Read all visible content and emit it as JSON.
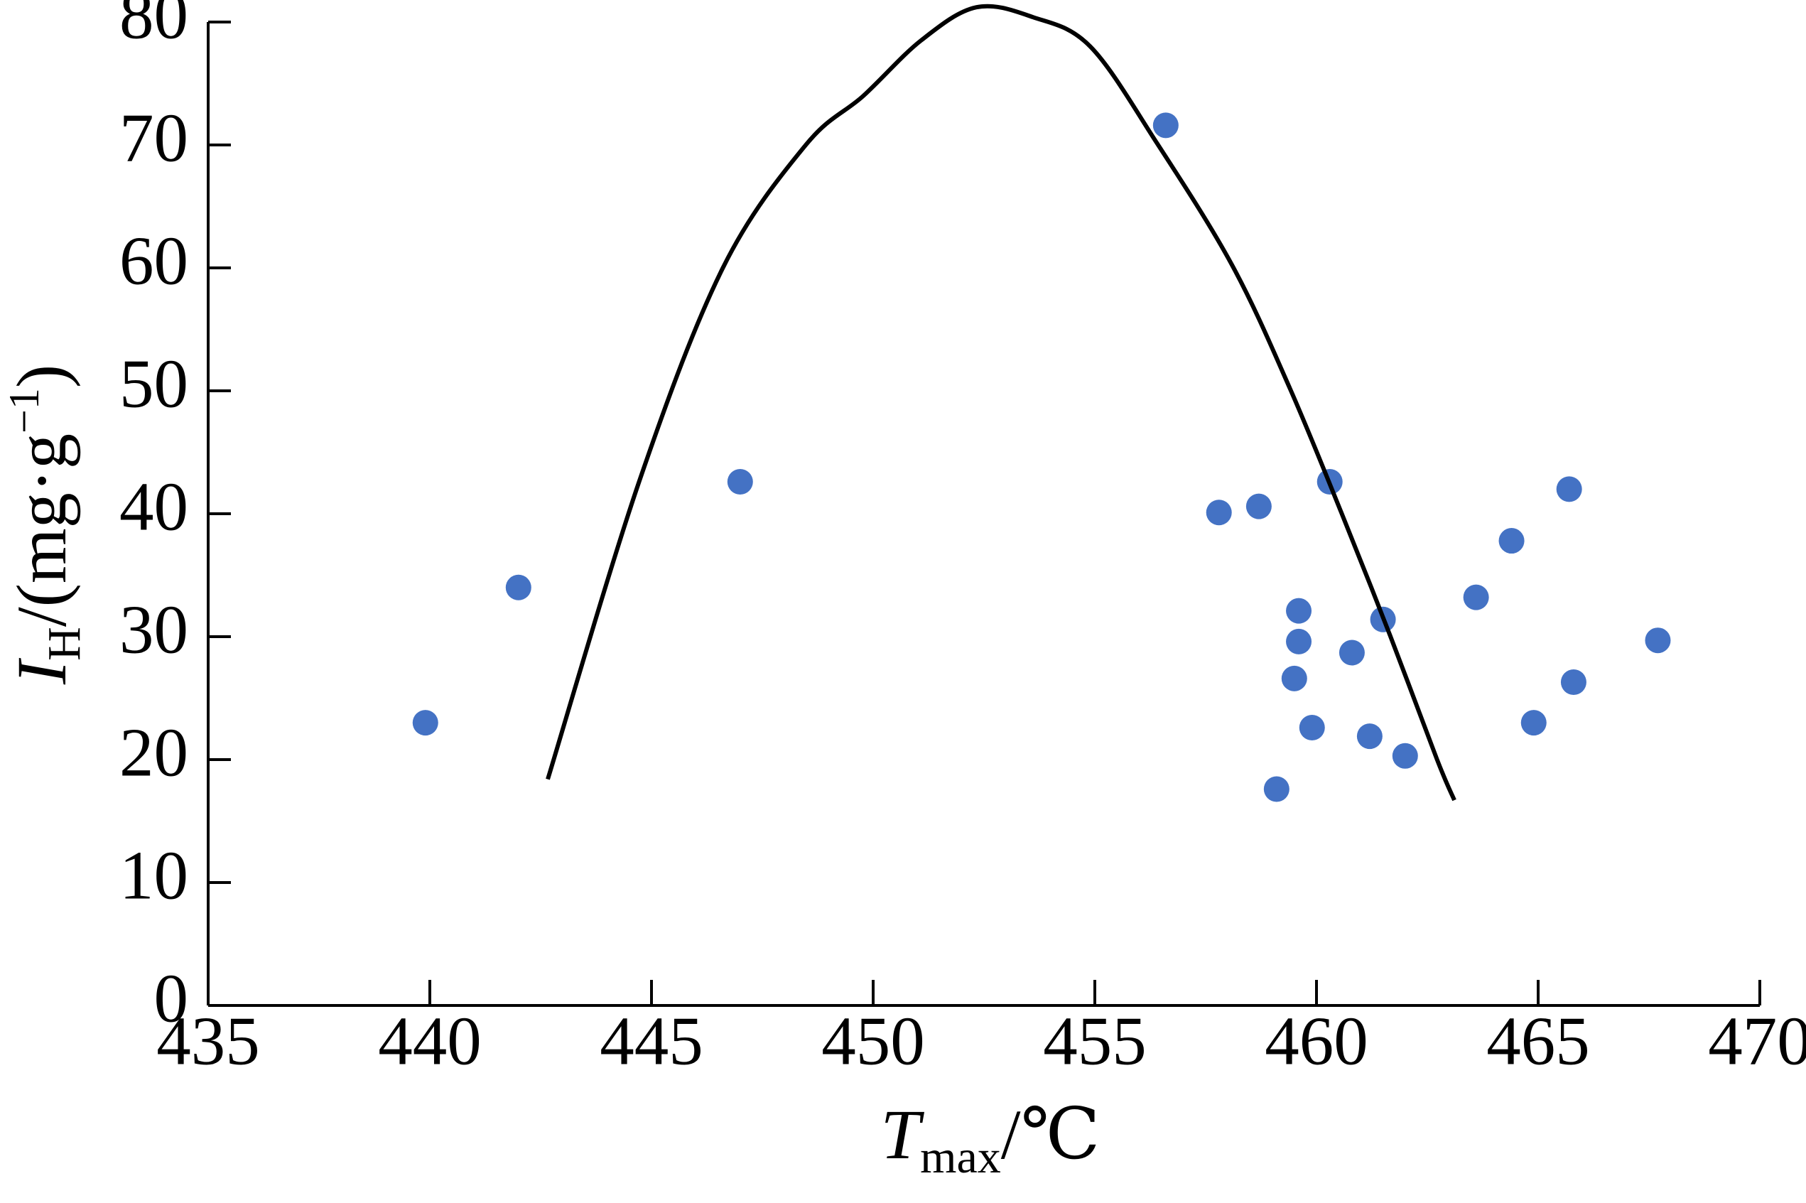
{
  "chart_data": {
    "type": "scatter",
    "x_label": {
      "symbol": "T",
      "subscript": "max",
      "unit": "/℃"
    },
    "y_label": {
      "symbol": "I",
      "subscript": "H",
      "unit": "/(mg·g",
      "superscript": "−1",
      "close": ")"
    },
    "xlim": [
      435,
      470
    ],
    "ylim": [
      0,
      80
    ],
    "xticks": [
      435,
      440,
      445,
      450,
      455,
      460,
      465,
      470
    ],
    "yticks": [
      0,
      10,
      20,
      30,
      40,
      50,
      60,
      70,
      80
    ],
    "grid": false,
    "series": [
      {
        "type": "scatter",
        "color": "#4472c4",
        "x": [
          439.9,
          442.0,
          447.0,
          456.6,
          457.8,
          458.7,
          460.3,
          465.7,
          464.4,
          463.6,
          459.6,
          459.6,
          461.5,
          460.8,
          459.5,
          467.7,
          465.8,
          459.9,
          461.2,
          462.0,
          464.9,
          459.1
        ],
        "values": [
          23.0,
          34.0,
          42.6,
          71.6,
          40.1,
          40.6,
          42.6,
          42.0,
          37.8,
          33.2,
          32.1,
          29.6,
          31.4,
          28.7,
          26.6,
          29.7,
          26.3,
          22.6,
          21.9,
          20.3,
          23.0,
          17.6
        ]
      },
      {
        "type": "line",
        "color": "#000000",
        "x": [
          442.66,
          444.72,
          446.61,
          448.48,
          449.78,
          451.08,
          452.33,
          453.6,
          454.9,
          456.41,
          458.1,
          459.4,
          460.56,
          461.66,
          462.72,
          463.11
        ],
        "values": [
          18.4,
          42.6,
          60.0,
          70.0,
          74.0,
          78.5,
          81.2,
          80.4,
          78.0,
          70.1,
          60.2,
          50.2,
          40.1,
          30.1,
          20.0,
          16.7
        ]
      }
    ]
  }
}
